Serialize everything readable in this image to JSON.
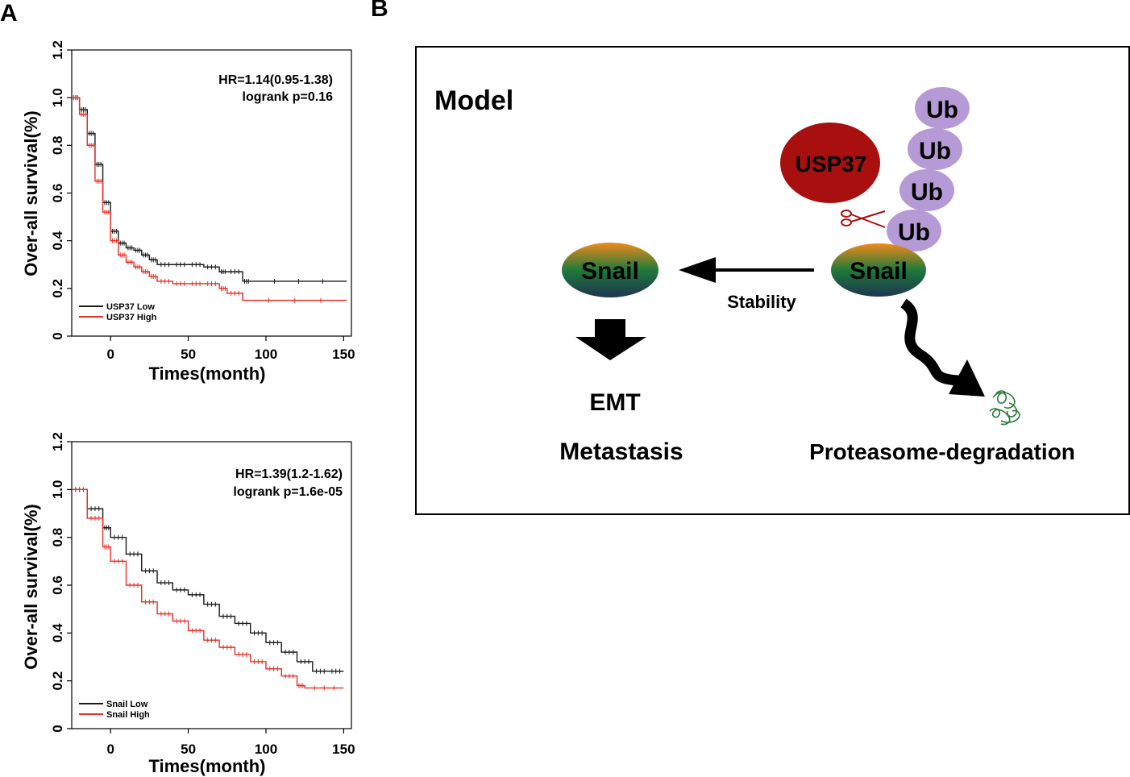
{
  "panel_a_label": "A",
  "panel_b_label": "B",
  "chart_data": [
    {
      "type": "line",
      "xlabel": "Times(month)",
      "ylabel": "Over-all survival(%)",
      "xlim": [
        -25,
        155
      ],
      "ylim": [
        0,
        1.2
      ],
      "xticks": [
        0,
        50,
        100,
        150
      ],
      "yticks": [
        0,
        0.2,
        0.4,
        0.6,
        0.8,
        1.0,
        1.2
      ],
      "ytick_labels": [
        "0",
        "0.2",
        "0.4",
        "0.6",
        "0.8",
        "1.0",
        "1.2"
      ],
      "annotation": [
        "HR=1.14(0.95-1.38)",
        "logrank p=0.16"
      ],
      "series": [
        {
          "name": "USP37 Low",
          "color": "#1a1a1a",
          "x": [
            -25,
            -20,
            -15,
            -10,
            -5,
            0,
            5,
            10,
            15,
            20,
            25,
            30,
            40,
            50,
            60,
            70,
            75,
            85,
            90,
            152
          ],
          "y": [
            1.0,
            0.95,
            0.85,
            0.72,
            0.56,
            0.44,
            0.39,
            0.37,
            0.36,
            0.34,
            0.32,
            0.3,
            0.3,
            0.3,
            0.29,
            0.27,
            0.27,
            0.23,
            0.23,
            0.23
          ]
        },
        {
          "name": "USP37 High",
          "color": "#e8302a",
          "x": [
            -25,
            -20,
            -15,
            -10,
            -5,
            0,
            5,
            10,
            15,
            20,
            25,
            30,
            40,
            50,
            60,
            70,
            75,
            85,
            152
          ],
          "y": [
            1.0,
            0.93,
            0.8,
            0.65,
            0.52,
            0.4,
            0.34,
            0.31,
            0.29,
            0.27,
            0.25,
            0.23,
            0.22,
            0.22,
            0.22,
            0.2,
            0.18,
            0.15,
            0.15
          ]
        }
      ]
    },
    {
      "type": "line",
      "xlabel": "Times(month)",
      "ylabel": "Over-all survival(%)",
      "xlim": [
        -25,
        155
      ],
      "ylim": [
        0,
        1.2
      ],
      "xticks": [
        0,
        50,
        100,
        150
      ],
      "yticks": [
        0,
        0.2,
        0.4,
        0.6,
        0.8,
        1.0,
        1.2
      ],
      "ytick_labels": [
        "0",
        "0.2",
        "0.4",
        "0.6",
        "0.8",
        "1.0",
        "1.2"
      ],
      "annotation": [
        "HR=1.39(1.2-1.62)",
        "logrank p=1.6e-05"
      ],
      "series": [
        {
          "name": "Snail Low",
          "color": "#1a1a1a",
          "x": [
            -25,
            -15,
            -5,
            0,
            10,
            20,
            30,
            40,
            50,
            60,
            70,
            80,
            90,
            100,
            110,
            120,
            130,
            140,
            150
          ],
          "y": [
            1.0,
            0.92,
            0.84,
            0.8,
            0.73,
            0.66,
            0.61,
            0.58,
            0.56,
            0.52,
            0.47,
            0.44,
            0.4,
            0.36,
            0.32,
            0.28,
            0.24,
            0.24,
            0.24
          ]
        },
        {
          "name": "Snail High",
          "color": "#e8302a",
          "x": [
            -25,
            -15,
            -5,
            0,
            10,
            20,
            30,
            40,
            50,
            60,
            70,
            80,
            90,
            100,
            110,
            120,
            125,
            150
          ],
          "y": [
            1.0,
            0.88,
            0.76,
            0.7,
            0.6,
            0.53,
            0.48,
            0.45,
            0.41,
            0.37,
            0.34,
            0.31,
            0.28,
            0.25,
            0.22,
            0.18,
            0.17,
            0.17
          ]
        }
      ]
    }
  ],
  "model": {
    "title": "Model",
    "usp37": "USP37",
    "ub": [
      "Ub",
      "Ub",
      "Ub",
      "Ub"
    ],
    "snail_left": "Snail",
    "snail_right": "Snail",
    "stability": "Stability",
    "emt": "EMT",
    "metastasis": "Metastasis",
    "degradation": "Proteasome-degradation",
    "colors": {
      "usp37": "#a80f0f",
      "ub": "#b59ad6",
      "snail_top": "#f08a1c",
      "snail_mid": "#1f7a3a",
      "snail_bottom": "#1d3550"
    }
  }
}
